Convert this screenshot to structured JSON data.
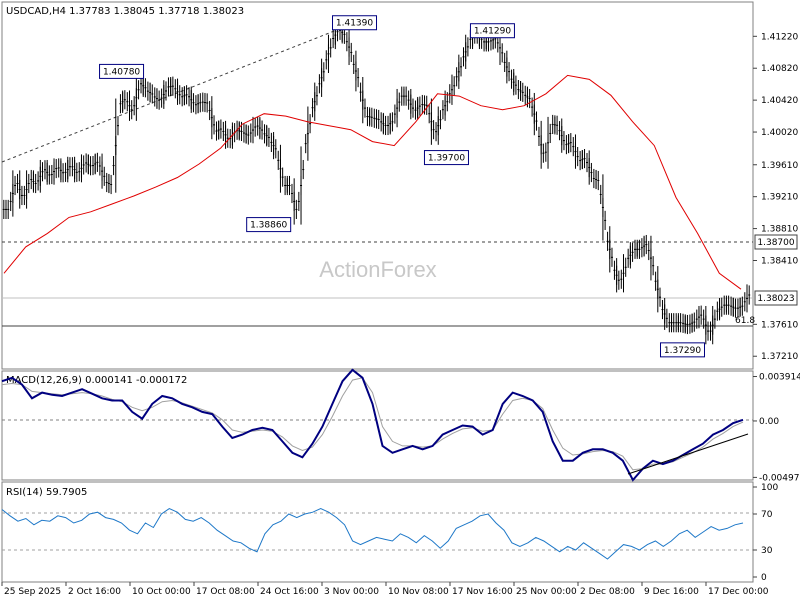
{
  "chart_data": [
    {
      "type": "line",
      "subtype": "bar-ohlc",
      "title": "USDCAD,H4  1.37783 1.38045 1.37718 1.38023",
      "watermark": "ActionForex",
      "ylim": [
        1.3705,
        1.4165
      ],
      "yticks": [
        "1.41220",
        "1.40820",
        "1.40420",
        "1.40020",
        "1.39610",
        "1.39210",
        "1.38810",
        "1.38410",
        "1.37610",
        "1.37210"
      ],
      "price_tags": [
        {
          "label": "1.38700",
          "value": 1.387,
          "style": "dashed"
        },
        {
          "label": "1.38023",
          "value": 1.38023,
          "style": "solid-gray"
        }
      ],
      "fib_line": {
        "value": 1.3773,
        "label": "61.8"
      },
      "trendline_label_points": [
        {
          "label": "1.40780"
        },
        {
          "label": "1.41390"
        }
      ],
      "annotations": [
        {
          "label": "1.40780",
          "x": 3.9,
          "y": 1.4078
        },
        {
          "label": "1.41390",
          "x": 11.5,
          "y": 1.4139
        },
        {
          "label": "1.41290",
          "x": 16.0,
          "y": 1.4129
        },
        {
          "label": "1.39700",
          "x": 14.5,
          "y": 1.397
        },
        {
          "label": "1.38860",
          "x": 8.7,
          "y": 1.3886
        },
        {
          "label": "1.37290",
          "x": 22.2,
          "y": 1.3729
        }
      ],
      "series": [
        {
          "name": "",
          "color": "#000000",
          "values": [
            1.3905,
            1.3945,
            1.3915,
            1.3945,
            1.3935,
            1.3958,
            1.3945,
            1.396,
            1.3948,
            1.3962,
            1.3948,
            1.3965,
            1.3958,
            1.3966,
            1.394,
            1.3935,
            1.4035,
            1.4045,
            1.4025,
            1.4065,
            1.4055,
            1.4048,
            1.404,
            1.4058,
            1.406,
            1.4045,
            1.405,
            1.4035,
            1.404,
            1.4038,
            1.4002,
            1.4007,
            1.399,
            1.4005,
            1.4002,
            1.3997,
            1.4012,
            1.4002,
            1.3993,
            1.3977,
            1.3935,
            1.3935,
            1.3895,
            1.3975,
            1.4025,
            1.4055,
            1.4085,
            1.4115,
            1.4132,
            1.4122,
            1.4095,
            1.4062,
            1.4022,
            1.402,
            1.4017,
            1.4008,
            1.4017,
            1.4047,
            1.4047,
            1.4027,
            1.4037,
            1.4035,
            1.3995,
            1.4025,
            1.4045,
            1.4065,
            1.409,
            1.4115,
            1.4128,
            1.4115,
            1.4115,
            1.412,
            1.4095,
            1.4072,
            1.4057,
            1.405,
            1.4042,
            1.4007,
            1.3965,
            1.4012,
            1.401,
            1.3985,
            1.399,
            1.3965,
            1.397,
            1.3945,
            1.394,
            1.3875,
            1.3835,
            1.381,
            1.384,
            1.3855,
            1.3855,
            1.3863,
            1.3825,
            1.3785,
            1.3763,
            1.3763,
            1.3763,
            1.376,
            1.3765,
            1.3775,
            1.3745,
            1.3775,
            1.3785,
            1.3785,
            1.378,
            1.3785,
            1.3802
          ]
        },
        {
          "name": "",
          "color": "#e00000",
          "values": [
            1.3825,
            1.3858,
            1.3875,
            1.3895,
            1.3902,
            1.3912,
            1.3922,
            1.3933,
            1.3945,
            1.3962,
            1.3982,
            1.4012,
            1.4025,
            1.4022,
            1.4015,
            1.401,
            1.4005,
            1.399,
            1.3985,
            1.4015,
            1.405,
            1.4047,
            1.4035,
            1.403,
            1.4035,
            1.405,
            1.4073,
            1.4068,
            1.4048,
            1.4015,
            1.3985,
            1.392,
            1.3875,
            1.3825,
            1.3805
          ]
        }
      ],
      "xticks": [
        "25 Sep 2025",
        "2 Oct 16:00",
        "10 Oct 00:00",
        "17 Oct 08:00",
        "24 Oct 16:00",
        "3 Nov 00:00",
        "10 Nov 08:00",
        "17 Nov 16:00",
        "25 Nov 00:00",
        "2 Dec 08:00",
        "9 Dec 16:00",
        "17 Dec 00:00"
      ]
    },
    {
      "type": "line",
      "title": "MACD(12,26,9) 0.000141 -0.000172",
      "ylim": [
        -0.0052,
        0.0044
      ],
      "yticks": [
        "0.003914",
        "0.00",
        "-0.00497"
      ],
      "series": [
        {
          "name": "",
          "color": "#000080",
          "values": [
            0.0035,
            0.0038,
            0.0032,
            0.002,
            0.0025,
            0.0023,
            0.0022,
            0.0025,
            0.0028,
            0.0024,
            0.002,
            0.0018,
            0.0018,
            0.0008,
            0.0002,
            0.0015,
            0.0022,
            0.002,
            0.0015,
            0.0012,
            0.0008,
            0.0006,
            -0.0005,
            -0.0015,
            -0.0012,
            -0.0008,
            -0.0006,
            -0.0008,
            -0.0018,
            -0.0028,
            -0.0032,
            -0.002,
            -0.0005,
            0.0015,
            0.0035,
            0.0045,
            0.0038,
            0.0015,
            -0.0022,
            -0.0028,
            -0.0025,
            -0.0022,
            -0.0025,
            -0.0022,
            -0.0012,
            -0.0008,
            -0.0004,
            -0.0005,
            -0.0012,
            -0.0008,
            0.0015,
            0.0025,
            0.0022,
            0.0018,
            0.0008,
            -0.0018,
            -0.0035,
            -0.0035,
            -0.0028,
            -0.0025,
            -0.0025,
            -0.0028,
            -0.0035,
            -0.0052,
            -0.0042,
            -0.0035,
            -0.0038,
            -0.0035,
            -0.003,
            -0.0025,
            -0.002,
            -0.0012,
            -0.0008,
            -0.0002,
            0.0001
          ]
        },
        {
          "name": "",
          "color": "#909090",
          "values": [
            0.0032,
            0.0033,
            0.0032,
            0.0026,
            0.0025,
            0.0024,
            0.0023,
            0.0024,
            0.0025,
            0.0024,
            0.0022,
            0.0019,
            0.0017,
            0.0012,
            0.0009,
            0.0012,
            0.0017,
            0.0018,
            0.0016,
            0.0013,
            0.001,
            0.0007,
            0.0001,
            -0.0008,
            -0.001,
            -0.0009,
            -0.0008,
            -0.0009,
            -0.0014,
            -0.0022,
            -0.0026,
            -0.0023,
            -0.0012,
            0.0004,
            0.0022,
            0.0036,
            0.0038,
            0.0025,
            -0.0005,
            -0.0018,
            -0.0022,
            -0.0022,
            -0.0023,
            -0.0022,
            -0.0016,
            -0.0011,
            -0.0007,
            -0.0006,
            -0.0009,
            -0.0008,
            0.0006,
            0.0018,
            0.002,
            0.0018,
            0.0011,
            -0.0008,
            -0.0024,
            -0.003,
            -0.0029,
            -0.0027,
            -0.0026,
            -0.0027,
            -0.0031,
            -0.0043,
            -0.0042,
            -0.0038,
            -0.0038,
            -0.0036,
            -0.0032,
            -0.0028,
            -0.0023,
            -0.0016,
            -0.0011,
            -0.0005,
            -0.0001
          ]
        }
      ],
      "zero_line": 0.0,
      "trendline_from": -0.0049,
      "trendline_to": -0.0013
    },
    {
      "type": "line",
      "title": "RSI(14) 59.7905",
      "ylim": [
        0,
        100
      ],
      "yticks": [
        "100",
        "70",
        "30",
        "0"
      ],
      "levels": [
        70,
        30
      ],
      "series": [
        {
          "name": "",
          "color": "#1e78c8",
          "values": [
            75,
            68,
            62,
            65,
            58,
            63,
            62,
            68,
            66,
            60,
            63,
            70,
            72,
            66,
            64,
            60,
            52,
            48,
            60,
            55,
            70,
            76,
            72,
            64,
            62,
            66,
            60,
            52,
            46,
            40,
            38,
            32,
            28,
            48,
            58,
            62,
            70,
            66,
            70,
            72,
            76,
            72,
            66,
            58,
            40,
            36,
            40,
            44,
            42,
            40,
            48,
            44,
            38,
            46,
            40,
            32,
            40,
            54,
            58,
            62,
            68,
            70,
            60,
            52,
            38,
            34,
            38,
            44,
            40,
            34,
            28,
            34,
            30,
            38,
            32,
            26,
            20,
            28,
            36,
            34,
            30,
            36,
            40,
            34,
            40,
            48,
            52,
            44,
            50,
            56,
            52,
            54,
            58,
            60
          ]
        }
      ]
    }
  ]
}
